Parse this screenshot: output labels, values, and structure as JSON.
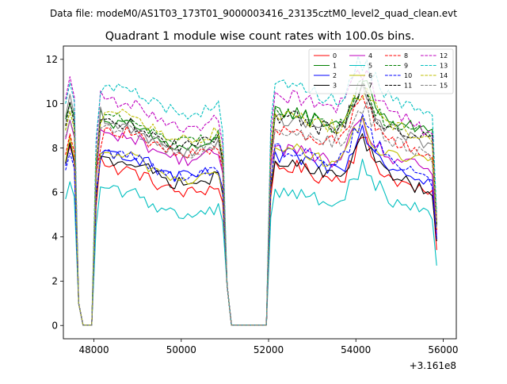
{
  "header": {
    "data_file": "Data file: modeM0/AS1T03_173T01_9000003416_23135cztM0_level2_quad_clean.evt"
  },
  "chart_data": {
    "type": "line",
    "title": "Quadrant 1 module wise count rates with 100.0s bins.",
    "xlabel": "",
    "ylabel": "",
    "x_offset_label": "+3.161e8",
    "xlim": [
      47300,
      56300
    ],
    "ylim": [
      -0.6,
      12.6
    ],
    "xticks": [
      48000,
      50000,
      52000,
      54000,
      56000
    ],
    "xtick_labels": [
      "48000",
      "50000",
      "52000",
      "54000",
      "56000"
    ],
    "yticks": [
      0,
      2,
      4,
      6,
      8,
      10,
      12
    ],
    "ytick_labels": [
      "0",
      "2",
      "4",
      "6",
      "8",
      "10",
      "12"
    ],
    "grid": false,
    "legend_position": "top-right",
    "segments": [
      {
        "start": 47350,
        "end": 47950,
        "step": 100
      },
      {
        "start": 48050,
        "end": 50950,
        "step": 100
      },
      {
        "start": 51050,
        "end": 51950,
        "step": 100
      },
      {
        "start": 52050,
        "end": 55850,
        "step": 100
      }
    ],
    "series": [
      {
        "name": "0",
        "color": "#ff0000",
        "dash": "solid",
        "mid": 6.3,
        "first": 7.9,
        "late": 6.9,
        "quiet": 5.7,
        "end": 3.4
      },
      {
        "name": "1",
        "color": "#008000",
        "dash": "solid",
        "mid": 8.3,
        "first": 9.9,
        "late": 9.4,
        "quiet": 8.6,
        "end": 4.5
      },
      {
        "name": "2",
        "color": "#0000ff",
        "dash": "solid",
        "mid": 7.0,
        "first": 7.8,
        "late": 7.4,
        "quiet": 6.4,
        "end": 3.9
      },
      {
        "name": "3",
        "color": "#000000",
        "dash": "solid",
        "mid": 6.7,
        "first": 7.9,
        "late": 7.0,
        "quiet": 5.8,
        "end": 3.8
      },
      {
        "name": "4",
        "color": "#bf00bf",
        "dash": "solid",
        "mid": 7.8,
        "first": 9.0,
        "late": 7.7,
        "quiet": 6.9,
        "end": 4.1
      },
      {
        "name": "5",
        "color": "#00bfbf",
        "dash": "solid",
        "mid": 5.3,
        "first": 6.3,
        "late": 5.8,
        "quiet": 5.0,
        "end": 2.7
      },
      {
        "name": "6",
        "color": "#bfbf00",
        "dash": "solid",
        "mid": 6.9,
        "first": 8.0,
        "late": 7.7,
        "quiet": 7.3,
        "end": 4.3
      },
      {
        "name": "7",
        "color": "#808080",
        "dash": "solid",
        "mid": 8.2,
        "first": 10.0,
        "late": 9.1,
        "quiet": 8.0,
        "end": 4.7
      },
      {
        "name": "8",
        "color": "#ff0000",
        "dash": "dashed",
        "mid": 8.0,
        "first": 8.3,
        "late": 8.6,
        "quiet": 7.5,
        "end": 4.3
      },
      {
        "name": "9",
        "color": "#008000",
        "dash": "dashed",
        "mid": 8.6,
        "first": 9.4,
        "late": 9.3,
        "quiet": 8.5,
        "end": 4.6
      },
      {
        "name": "10",
        "color": "#0000ff",
        "dash": "dashed",
        "mid": 7.0,
        "first": 7.6,
        "late": 7.7,
        "quiet": 6.4,
        "end": 3.9
      },
      {
        "name": "11",
        "color": "#000000",
        "dash": "dashed",
        "mid": 8.4,
        "first": 9.6,
        "late": 9.1,
        "quiet": 8.3,
        "end": 4.5
      },
      {
        "name": "12",
        "color": "#bf00bf",
        "dash": "dashed",
        "mid": 9.3,
        "first": 10.8,
        "late": 10.1,
        "quiet": 8.4,
        "end": 4.8
      },
      {
        "name": "13",
        "color": "#00bfbf",
        "dash": "dashed",
        "mid": 9.9,
        "first": 10.6,
        "late": 10.5,
        "quiet": 9.4,
        "end": 5.1
      },
      {
        "name": "14",
        "color": "#bfbf00",
        "dash": "dashed",
        "mid": 8.7,
        "first": 9.4,
        "late": 9.2,
        "quiet": 8.3,
        "end": 4.7
      },
      {
        "name": "15",
        "color": "#808080",
        "dash": "dashed",
        "mid": 8.1,
        "first": 9.1,
        "late": 8.5,
        "quiet": 7.5,
        "end": 4.4
      }
    ]
  }
}
